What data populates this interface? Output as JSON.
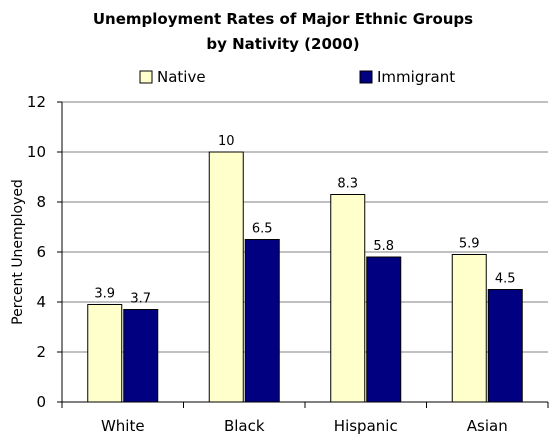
{
  "chart_data": {
    "type": "bar",
    "title_line1": "Unemployment Rates of Major Ethnic Groups",
    "title_line2": "by Nativity (2000)",
    "xlabel": "",
    "ylabel": "Percent Unemployed",
    "ylim": [
      0,
      12
    ],
    "yticks": [
      "0",
      "2",
      "4",
      "6",
      "8",
      "10",
      "12"
    ],
    "categories": [
      "White",
      "Black",
      "Hispanic",
      "Asian"
    ],
    "series": [
      {
        "name": "Native",
        "values": [
          3.9,
          10,
          8.3,
          5.9
        ],
        "labels": [
          "3.9",
          "10",
          "8.3",
          "5.9"
        ],
        "color": "#FFFFCC"
      },
      {
        "name": "Immigrant",
        "values": [
          3.7,
          6.5,
          5.8,
          4.5
        ],
        "labels": [
          "3.7",
          "6.5",
          "5.8",
          "4.5"
        ],
        "color": "#000080"
      }
    ],
    "legend_position": "top-center",
    "grid": true
  }
}
